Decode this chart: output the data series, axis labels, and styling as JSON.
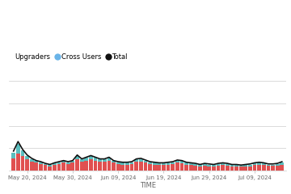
{
  "xlabel": "TIME",
  "legend_labels": [
    "Upgraders",
    "Cross Users",
    "Total"
  ],
  "bar_color_upgraders": "#e05050",
  "bar_color_cross": "#5abfbf",
  "line_color_total": "#111111",
  "background_color": "#ffffff",
  "grid_color": "#cccccc",
  "xtick_labels": [
    "May 20, 2024",
    "May 30, 2024",
    "Jun 09, 2024",
    "Jun 19, 2024",
    "Jun 29, 2024",
    "Jul 09, 2024"
  ],
  "upgraders": [
    22,
    30,
    26,
    20,
    16,
    14,
    12,
    10,
    8,
    10,
    12,
    14,
    12,
    14,
    20,
    16,
    18,
    20,
    18,
    16,
    16,
    18,
    14,
    12,
    11,
    11,
    12,
    16,
    16,
    14,
    12,
    11,
    10,
    10,
    11,
    12,
    14,
    13,
    11,
    10,
    9,
    8,
    9,
    8,
    8,
    9,
    10,
    9,
    8,
    8,
    7,
    8,
    8,
    10,
    11,
    10,
    9,
    9,
    9,
    11
  ],
  "cross_users": [
    10,
    18,
    10,
    6,
    4,
    3,
    3,
    2,
    2,
    3,
    3,
    3,
    3,
    3,
    6,
    4,
    5,
    6,
    5,
    4,
    4,
    5,
    3,
    3,
    3,
    3,
    3,
    4,
    5,
    4,
    3,
    3,
    3,
    3,
    3,
    3,
    4,
    4,
    3,
    3,
    3,
    2,
    3,
    3,
    2,
    3,
    3,
    3,
    2,
    2,
    2,
    2,
    3,
    3,
    3,
    3,
    2,
    2,
    3,
    4
  ],
  "total_line": [
    35,
    52,
    38,
    28,
    22,
    18,
    16,
    13,
    11,
    14,
    16,
    18,
    16,
    18,
    28,
    21,
    24,
    27,
    24,
    21,
    21,
    24,
    18,
    16,
    15,
    15,
    16,
    21,
    22,
    19,
    16,
    15,
    14,
    14,
    15,
    16,
    19,
    18,
    15,
    14,
    13,
    11,
    13,
    12,
    11,
    13,
    14,
    13,
    11,
    11,
    10,
    11,
    12,
    14,
    15,
    14,
    12,
    12,
    13,
    16
  ],
  "ylim_max": 160,
  "n_grid_lines": 4,
  "tick_positions": [
    3,
    13,
    23,
    33,
    43,
    53
  ]
}
